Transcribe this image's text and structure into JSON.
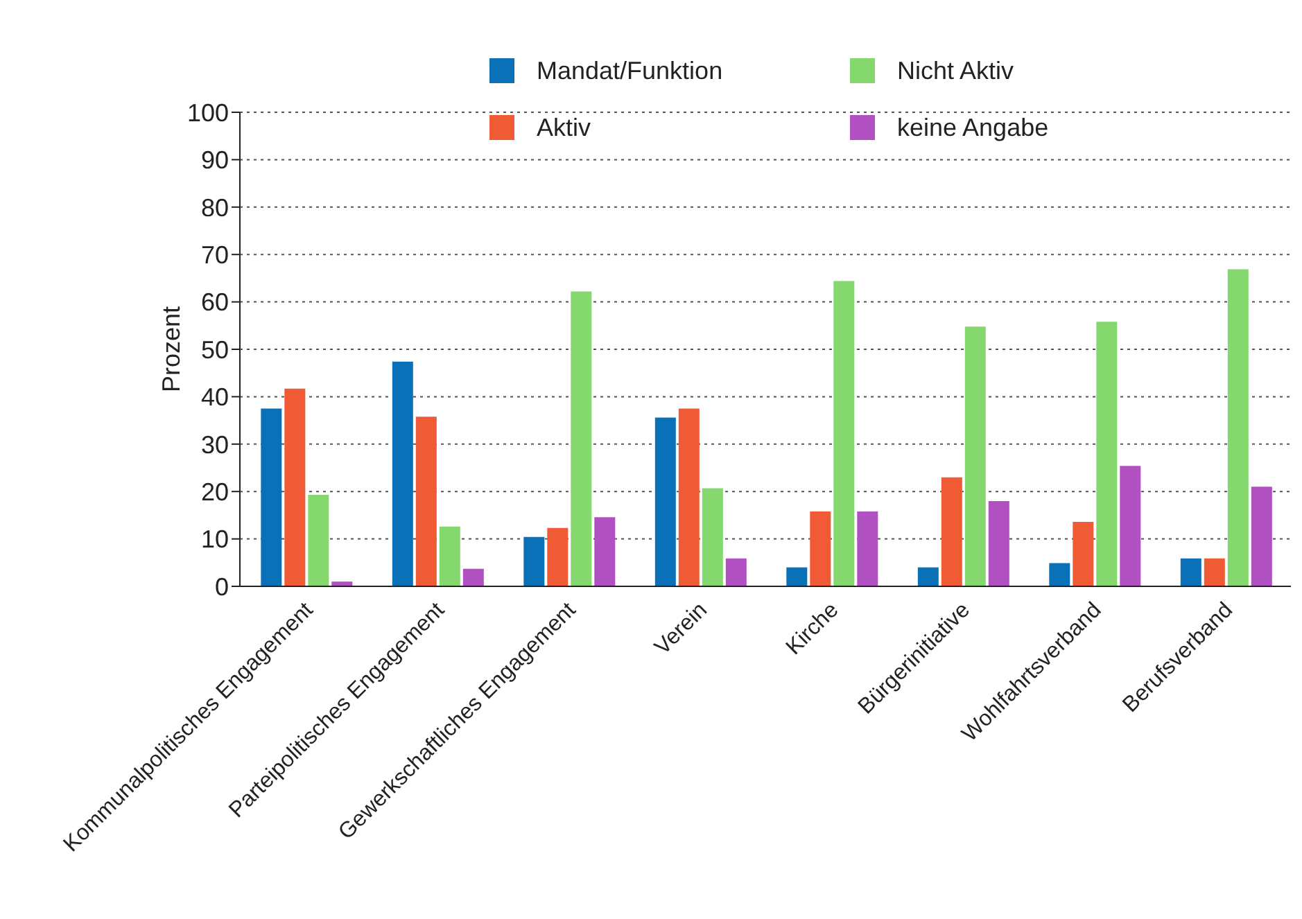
{
  "chart_data": {
    "type": "bar",
    "ylabel": "Prozent",
    "categories": [
      "Kommunalpolitisches Engagement",
      "Parteipolitisches Engagement",
      "Gewerkschaftliches Engagement",
      "Verein",
      "Kirche",
      "Bürgerinitiative",
      "Wohlfahrtsverband",
      "Berufsverband"
    ],
    "series": [
      {
        "name": "Mandat/Funktion",
        "color": "#0a70b8",
        "values": [
          37.5,
          47.4,
          10.4,
          35.6,
          4,
          4,
          4.9,
          5.9
        ]
      },
      {
        "name": "Aktiv",
        "color": "#f05a35",
        "values": [
          41.7,
          35.8,
          12.3,
          37.5,
          15.8,
          23,
          13.6,
          5.9
        ]
      },
      {
        "name": "Nicht Aktiv",
        "color": "#85d86e",
        "values": [
          19.3,
          12.6,
          62.2,
          20.7,
          64.4,
          54.8,
          55.8,
          66.9
        ]
      },
      {
        "name": "keine Angabe",
        "color": "#b150c0",
        "values": [
          1,
          3.7,
          14.6,
          5.9,
          15.8,
          18,
          25.4,
          21
        ]
      }
    ],
    "ylim": [
      0,
      100
    ],
    "yticks": [
      0,
      10,
      20,
      30,
      40,
      50,
      60,
      70,
      80,
      90,
      100
    ],
    "grid": "y",
    "legend": "top"
  }
}
